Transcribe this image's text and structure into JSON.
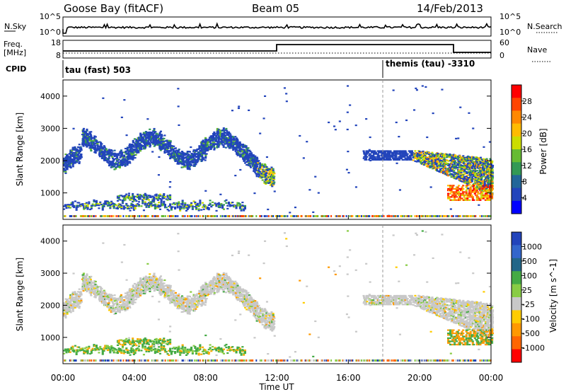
{
  "header": {
    "station": "Goose Bay (fitACF)",
    "beam": "Beam 05",
    "date": "14/Feb/2013"
  },
  "noise_panel": {
    "left_label": "N.Sky",
    "left_ticks": [
      "10^5",
      "10^0"
    ],
    "right_ticks": [
      "10^5",
      "10^0"
    ],
    "right_label": "N.Search"
  },
  "freq_panel": {
    "left_label_1": "Freq.",
    "left_label_2": "[MHz]",
    "left_ticks": [
      "18",
      "8"
    ],
    "right_ticks": [
      "60",
      "0"
    ],
    "right_label": "Nave"
  },
  "cpid": {
    "label": "CPID",
    "segments": [
      {
        "text": "tau (fast) 503",
        "start": "00:00"
      },
      {
        "text": "themis (tau) -3310",
        "start": "18:00"
      }
    ]
  },
  "chart_data": [
    {
      "type": "heatmap",
      "panel": "power",
      "ylabel": "Slant Range [km]",
      "xlabel": "Time UT",
      "x_range": [
        "00:00",
        "24:00"
      ],
      "yticks": [
        "1000",
        "2000",
        "3000",
        "4000"
      ],
      "ylim": [
        180,
        4500
      ],
      "colorbar": {
        "label": "Power [dB]",
        "ticks": [
          "28",
          "24",
          "20",
          "16",
          "12",
          "8",
          "4"
        ],
        "colors": [
          "#ff0000",
          "#ff4400",
          "#ff8800",
          "#ffbb00",
          "#ccdd00",
          "#66bb33",
          "#339955",
          "#226699",
          "#2244bb",
          "#0000ff"
        ]
      },
      "bands": [
        {
          "t0": 0.0,
          "t1": 11.7,
          "r0": 1700,
          "r1": 3200,
          "level": "low"
        },
        {
          "t0": 16.8,
          "t1": 24.0,
          "r0": 1100,
          "r1": 2500,
          "level": "mixed"
        },
        {
          "t0": 0.0,
          "t1": 10.0,
          "r0": 300,
          "r1": 1000,
          "level": "low"
        }
      ]
    },
    {
      "type": "heatmap",
      "panel": "velocity",
      "ylabel": "Slant Range [km]",
      "xlabel": "Time UT",
      "x_range": [
        "00:00",
        "24:00"
      ],
      "yticks": [
        "1000",
        "2000",
        "3000",
        "4000"
      ],
      "ylim": [
        180,
        4500
      ],
      "colorbar": {
        "label": "Velocity [m s^-1]",
        "ticks": [
          "1000",
          "500",
          "100",
          "25",
          "-25",
          "-100",
          "-500",
          "-1000"
        ],
        "colors": [
          "#2244bb",
          "#3366cc",
          "#226688",
          "#44aa44",
          "#88cc44",
          "#c8c8c8",
          "#ffcc00",
          "#ff9900",
          "#ff6600",
          "#ff0000"
        ]
      }
    }
  ],
  "x_axis": {
    "ticks": [
      "00:00",
      "04:00",
      "08:00",
      "12:00",
      "16:00",
      "20:00",
      "00:00"
    ],
    "label": "Time UT"
  }
}
